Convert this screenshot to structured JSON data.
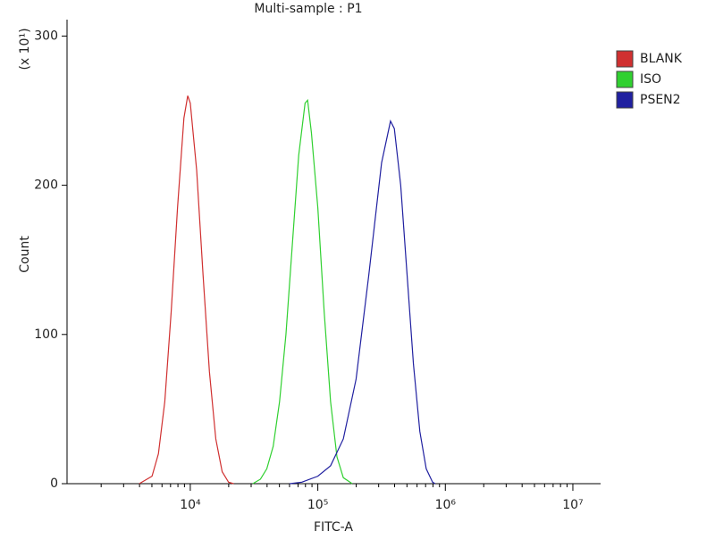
{
  "chart_data": {
    "type": "line",
    "title": "Multi-sample : P1",
    "x_label": "FITC-A",
    "y_label": "Count",
    "y_multiplier": "(x 10¹)",
    "log_x": true,
    "xlim": [
      1080,
      16500000
    ],
    "xticks": [
      {
        "value": 10000,
        "label": "10⁴"
      },
      {
        "value": 100000,
        "label": "10⁵"
      },
      {
        "value": 1000000,
        "label": "10⁶"
      },
      {
        "value": 10000000,
        "label": "10⁷"
      }
    ],
    "xminorticks": [
      2000,
      3000,
      4000,
      5000,
      6000,
      7000,
      8000,
      9000,
      20000,
      30000,
      40000,
      50000,
      60000,
      70000,
      80000,
      90000,
      200000,
      300000,
      400000,
      500000,
      600000,
      700000,
      800000,
      900000,
      2000000,
      3000000,
      4000000,
      5000000,
      6000000,
      7000000,
      8000000,
      9000000
    ],
    "ylim": [
      0,
      311
    ],
    "yticks": [
      0,
      100,
      200,
      300
    ],
    "legend": "right",
    "series": [
      {
        "name": "BLANK",
        "color": "#d03030",
        "x": [
          3981,
          5012,
          5623,
          6310,
          7079,
          7943,
          8913,
          9550,
          10000,
          11220,
          12589,
          14125,
          15849,
          17783,
          19953,
          21878
        ],
        "values": [
          0,
          5,
          20,
          55,
          115,
          185,
          245,
          260,
          255,
          210,
          140,
          75,
          30,
          8,
          1,
          0
        ]
      },
      {
        "name": "ISO",
        "color": "#30d030",
        "x": [
          30903,
          35481,
          39811,
          44668,
          50119,
          56234,
          63096,
          70795,
          79433,
          83176,
          89125,
          100000,
          112202,
          125893,
          141254,
          158489,
          186209
        ],
        "values": [
          0,
          3,
          10,
          25,
          55,
          100,
          160,
          220,
          255,
          257,
          235,
          185,
          115,
          55,
          18,
          4,
          0
        ]
      },
      {
        "name": "PSEN2",
        "color": "#2020a0",
        "x": [
          60256,
          75000,
          100000,
          125893,
          158489,
          199526,
          251189,
          316228,
          371535,
          398107,
          446684,
          501187,
          562341,
          630957,
          707946,
          794328,
          831764
        ],
        "values": [
          0,
          1,
          5,
          12,
          30,
          70,
          140,
          215,
          243,
          238,
          200,
          140,
          80,
          35,
          10,
          1,
          0
        ]
      }
    ]
  }
}
